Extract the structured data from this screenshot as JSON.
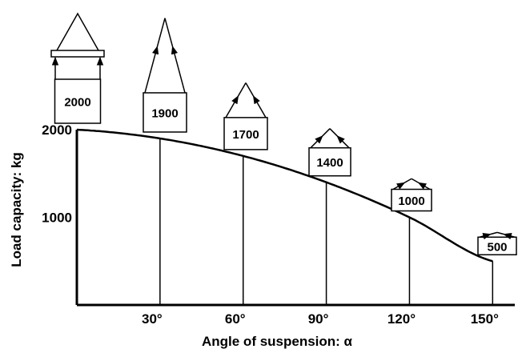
{
  "chart_data": {
    "type": "line",
    "xlabel": "Angle of suspension: α",
    "ylabel": "Load capacity: kg",
    "x": [
      0,
      30,
      60,
      90,
      120,
      150
    ],
    "x_tick_labels": [
      "30°",
      "60°",
      "90°",
      "120°",
      "150°"
    ],
    "x_ticks": [
      30,
      60,
      90,
      120,
      150
    ],
    "y_ticks": [
      1000,
      2000
    ],
    "y_tick_labels": [
      "1000",
      "2000"
    ],
    "xlim": [
      0,
      158
    ],
    "ylim": [
      0,
      2000
    ],
    "grid": false,
    "series": [
      {
        "values": [
          2000,
          1900,
          1700,
          1400,
          1000,
          500
        ]
      }
    ],
    "annotations": [
      {
        "angle": 0,
        "label": "2000"
      },
      {
        "angle": 30,
        "label": "1900"
      },
      {
        "angle": 60,
        "label": "1700"
      },
      {
        "angle": 90,
        "label": "1400"
      },
      {
        "angle": 120,
        "label": "1000"
      },
      {
        "angle": 150,
        "label": "500"
      }
    ],
    "colors": {
      "line": "#000000",
      "background": "#ffffff"
    }
  }
}
